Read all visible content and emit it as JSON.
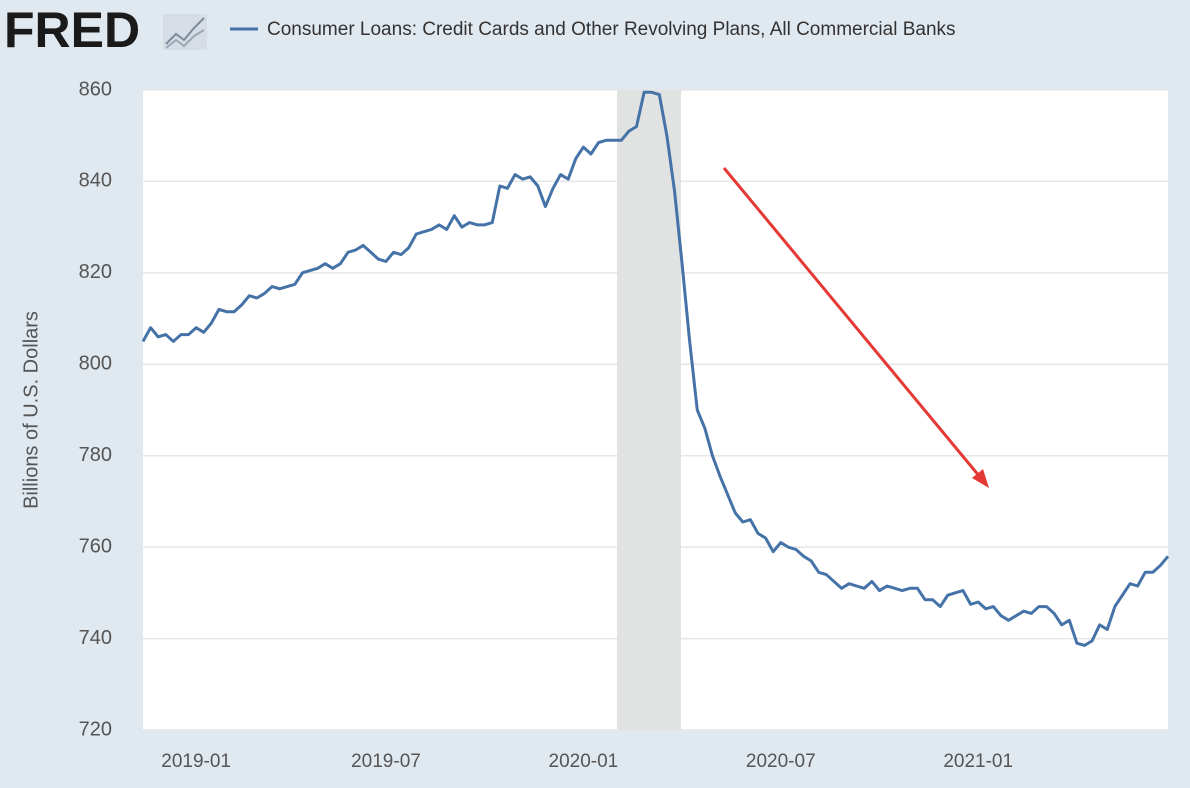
{
  "logo": "FRED",
  "chart_data": {
    "type": "line",
    "y_label": "Billions of U.S. Dollars",
    "categories": [
      null,
      null,
      null,
      null,
      null,
      null,
      null,
      "2019-01",
      null,
      null,
      null,
      null,
      null,
      null,
      null,
      null,
      null,
      null,
      null,
      null,
      null,
      null,
      null,
      null,
      null,
      null,
      null,
      null,
      null,
      null,
      null,
      null,
      "2019-07",
      null,
      null,
      null,
      null,
      null,
      null,
      null,
      null,
      null,
      null,
      null,
      null,
      null,
      null,
      null,
      null,
      null,
      null,
      null,
      null,
      null,
      null,
      null,
      null,
      null,
      "2020-01",
      null,
      null,
      null,
      null,
      null,
      null,
      null,
      null,
      null,
      null,
      null,
      null,
      null,
      null,
      null,
      null,
      null,
      null,
      null,
      null,
      null,
      null,
      null,
      null,
      null,
      "2020-07",
      null,
      null,
      null,
      null,
      null,
      null,
      null,
      null,
      null,
      null,
      null,
      null,
      null,
      null,
      null,
      null,
      null,
      null,
      null,
      null,
      null,
      null,
      null,
      null,
      null,
      "2021-01",
      null,
      null,
      null,
      null,
      null,
      null,
      null,
      null,
      null,
      null,
      null,
      null,
      null,
      null,
      null,
      null,
      null,
      null,
      null,
      null,
      null,
      null,
      null,
      null,
      null
    ],
    "series": [
      {
        "name": "Consumer Loans: Credit Cards and Other Revolving Plans, All Commercial Banks",
        "color": "#4572a7",
        "values": [
          805,
          808,
          806,
          806.5,
          805,
          806.5,
          806.5,
          808,
          807,
          809,
          812,
          811.5,
          811.5,
          813,
          815,
          814.5,
          815.5,
          817,
          816.5,
          817,
          817.5,
          820,
          820.5,
          821,
          822,
          821,
          822,
          824.5,
          825,
          826,
          824.5,
          823,
          822.5,
          824.5,
          824,
          825.5,
          828.5,
          829,
          829.5,
          830.5,
          829.5,
          832.5,
          830,
          831,
          830.5,
          830.5,
          831,
          839,
          838.5,
          841.5,
          840.5,
          841,
          839,
          834.5,
          838.5,
          841.5,
          840.5,
          845,
          847.5,
          846,
          848.5,
          849,
          849,
          849,
          851,
          852,
          859.5,
          859.5,
          859,
          850,
          838,
          822,
          805,
          790,
          786,
          780,
          775.5,
          771.5,
          767.5,
          765.5,
          766,
          763,
          762,
          759,
          761,
          760,
          759.5,
          758,
          757,
          754.5,
          754,
          752.5,
          751,
          752,
          751.5,
          751,
          752.5,
          750.5,
          751.5,
          751,
          750.5,
          751,
          751,
          748.5,
          748.5,
          747,
          749.5,
          750,
          750.5,
          747.5,
          748,
          746.5,
          747,
          745,
          744,
          745,
          746,
          745.5,
          747,
          747,
          745.5,
          743,
          744,
          739,
          738.5,
          739.5,
          743,
          742,
          747,
          749.5,
          752,
          751.5,
          754.5,
          754.5,
          756,
          758
        ]
      }
    ],
    "ylim": [
      720,
      860
    ],
    "yticks": [
      720,
      740,
      760,
      780,
      800,
      820,
      840,
      860
    ],
    "grid": true
  }
}
